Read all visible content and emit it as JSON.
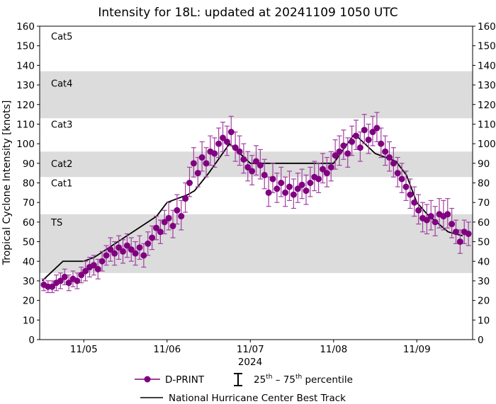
{
  "chart_data": {
    "type": "scatter",
    "title": "Intensity for 18L: updated at 20241109 1050 UTC",
    "ylabel": "Tropical Cyclone Intensity [knots]",
    "xlabel": "2024",
    "x_units": "days since 2024-11-05 00 UTC",
    "xlim": [
      -0.53,
      4.67
    ],
    "ylim": [
      0,
      160
    ],
    "yticks": [
      0,
      10,
      20,
      30,
      40,
      50,
      60,
      70,
      80,
      90,
      100,
      110,
      120,
      130,
      140,
      150,
      160
    ],
    "xticks": [
      {
        "value": 0,
        "label": "11/05"
      },
      {
        "value": 1,
        "label": "11/06"
      },
      {
        "value": 2,
        "label": "11/07"
      },
      {
        "value": 3,
        "label": "11/08"
      },
      {
        "value": 4,
        "label": "11/09"
      }
    ],
    "categories": [
      {
        "label": "Cat5",
        "min": 137,
        "max": 160,
        "shaded": false,
        "label_at": 155
      },
      {
        "label": "Cat4",
        "min": 113,
        "max": 137,
        "shaded": true,
        "label_at": 131
      },
      {
        "label": "Cat3",
        "min": 96,
        "max": 113,
        "shaded": false,
        "label_at": 110
      },
      {
        "label": "Cat2",
        "min": 83,
        "max": 96,
        "shaded": true,
        "label_at": 90
      },
      {
        "label": "Cat1",
        "min": 64,
        "max": 83,
        "shaded": false,
        "label_at": 80
      },
      {
        "label": "TS",
        "min": 34,
        "max": 64,
        "shaded": true,
        "label_at": 60
      }
    ],
    "series": [
      {
        "name": "D-PRINT",
        "color": "#800080",
        "x_start": -0.48,
        "x_step": 0.05,
        "y": [
          28,
          27,
          27,
          29,
          30,
          32,
          29,
          31,
          30,
          33,
          35,
          37,
          38,
          36,
          40,
          43,
          46,
          44,
          47,
          45,
          48,
          46,
          44,
          47,
          43,
          49,
          52,
          57,
          55,
          60,
          62,
          58,
          66,
          63,
          72,
          80,
          90,
          85,
          93,
          90,
          96,
          95,
          100,
          103,
          101,
          106,
          98,
          96,
          92,
          88,
          86,
          91,
          89,
          84,
          75,
          82,
          77,
          80,
          75,
          78,
          74,
          77,
          79,
          76,
          80,
          83,
          82,
          87,
          85,
          88,
          94,
          96,
          99,
          95,
          101,
          104,
          98,
          107,
          102,
          106,
          108,
          100,
          96,
          93,
          90,
          85,
          82,
          78,
          74,
          70,
          66,
          62,
          61,
          63,
          60,
          64,
          63,
          64,
          59,
          55,
          50,
          55,
          54
        ],
        "err_low": [
          3,
          3,
          3,
          4,
          4,
          4,
          4,
          4,
          4,
          4,
          5,
          5,
          5,
          5,
          5,
          5,
          6,
          6,
          6,
          6,
          6,
          6,
          6,
          6,
          6,
          6,
          6,
          6,
          6,
          6,
          6,
          6,
          7,
          7,
          7,
          7,
          7,
          7,
          7,
          7,
          7,
          7,
          7,
          7,
          7,
          7,
          7,
          7,
          7,
          7,
          7,
          7,
          7,
          7,
          7,
          7,
          7,
          7,
          7,
          7,
          7,
          7,
          7,
          7,
          7,
          7,
          7,
          7,
          7,
          7,
          7,
          7,
          7,
          7,
          7,
          7,
          7,
          7,
          7,
          7,
          7,
          7,
          7,
          7,
          7,
          7,
          7,
          7,
          7,
          7,
          7,
          7,
          7,
          7,
          7,
          7,
          7,
          7,
          7,
          6,
          6,
          6,
          6
        ],
        "err_high": [
          3,
          3,
          3,
          4,
          4,
          4,
          4,
          4,
          4,
          4,
          5,
          5,
          5,
          5,
          5,
          5,
          6,
          6,
          6,
          6,
          6,
          6,
          6,
          6,
          6,
          6,
          6,
          6,
          6,
          6,
          8,
          8,
          8,
          8,
          8,
          8,
          8,
          8,
          8,
          8,
          8,
          8,
          8,
          8,
          8,
          8,
          8,
          8,
          8,
          8,
          8,
          8,
          8,
          8,
          8,
          8,
          8,
          8,
          8,
          8,
          8,
          8,
          8,
          8,
          8,
          8,
          8,
          8,
          8,
          8,
          8,
          8,
          8,
          8,
          8,
          8,
          8,
          8,
          8,
          8,
          8,
          8,
          8,
          8,
          8,
          8,
          8,
          8,
          8,
          8,
          8,
          8,
          8,
          8,
          8,
          8,
          8,
          8,
          8,
          6,
          6,
          6,
          6
        ]
      },
      {
        "name": "National Hurricane Center Best Track",
        "color": "#000000",
        "points": [
          [
            -0.5,
            30
          ],
          [
            -0.25,
            40
          ],
          [
            0,
            40
          ],
          [
            0.125,
            42
          ],
          [
            0.875,
            63
          ],
          [
            1.0,
            70
          ],
          [
            1.25,
            74
          ],
          [
            1.33,
            76
          ],
          [
            1.5,
            85
          ],
          [
            1.75,
            100
          ],
          [
            2.0,
            90
          ],
          [
            2.25,
            90
          ],
          [
            3.0,
            90
          ],
          [
            3.25,
            105
          ],
          [
            3.5,
            95
          ],
          [
            3.75,
            91
          ],
          [
            3.875,
            84
          ],
          [
            4.0,
            70
          ],
          [
            4.125,
            64
          ],
          [
            4.375,
            55
          ],
          [
            4.55,
            53
          ]
        ]
      }
    ],
    "legend": {
      "placement": "bottom",
      "dprint_label": "D-PRINT",
      "percentile_label_a": "25",
      "percentile_sup_a": "th",
      "percentile_dash": " – ",
      "percentile_label_b": "75",
      "percentile_sup_b": "th",
      "percentile_suffix": " percentile",
      "besttrack_label": "National Hurricane Center Best Track"
    }
  }
}
